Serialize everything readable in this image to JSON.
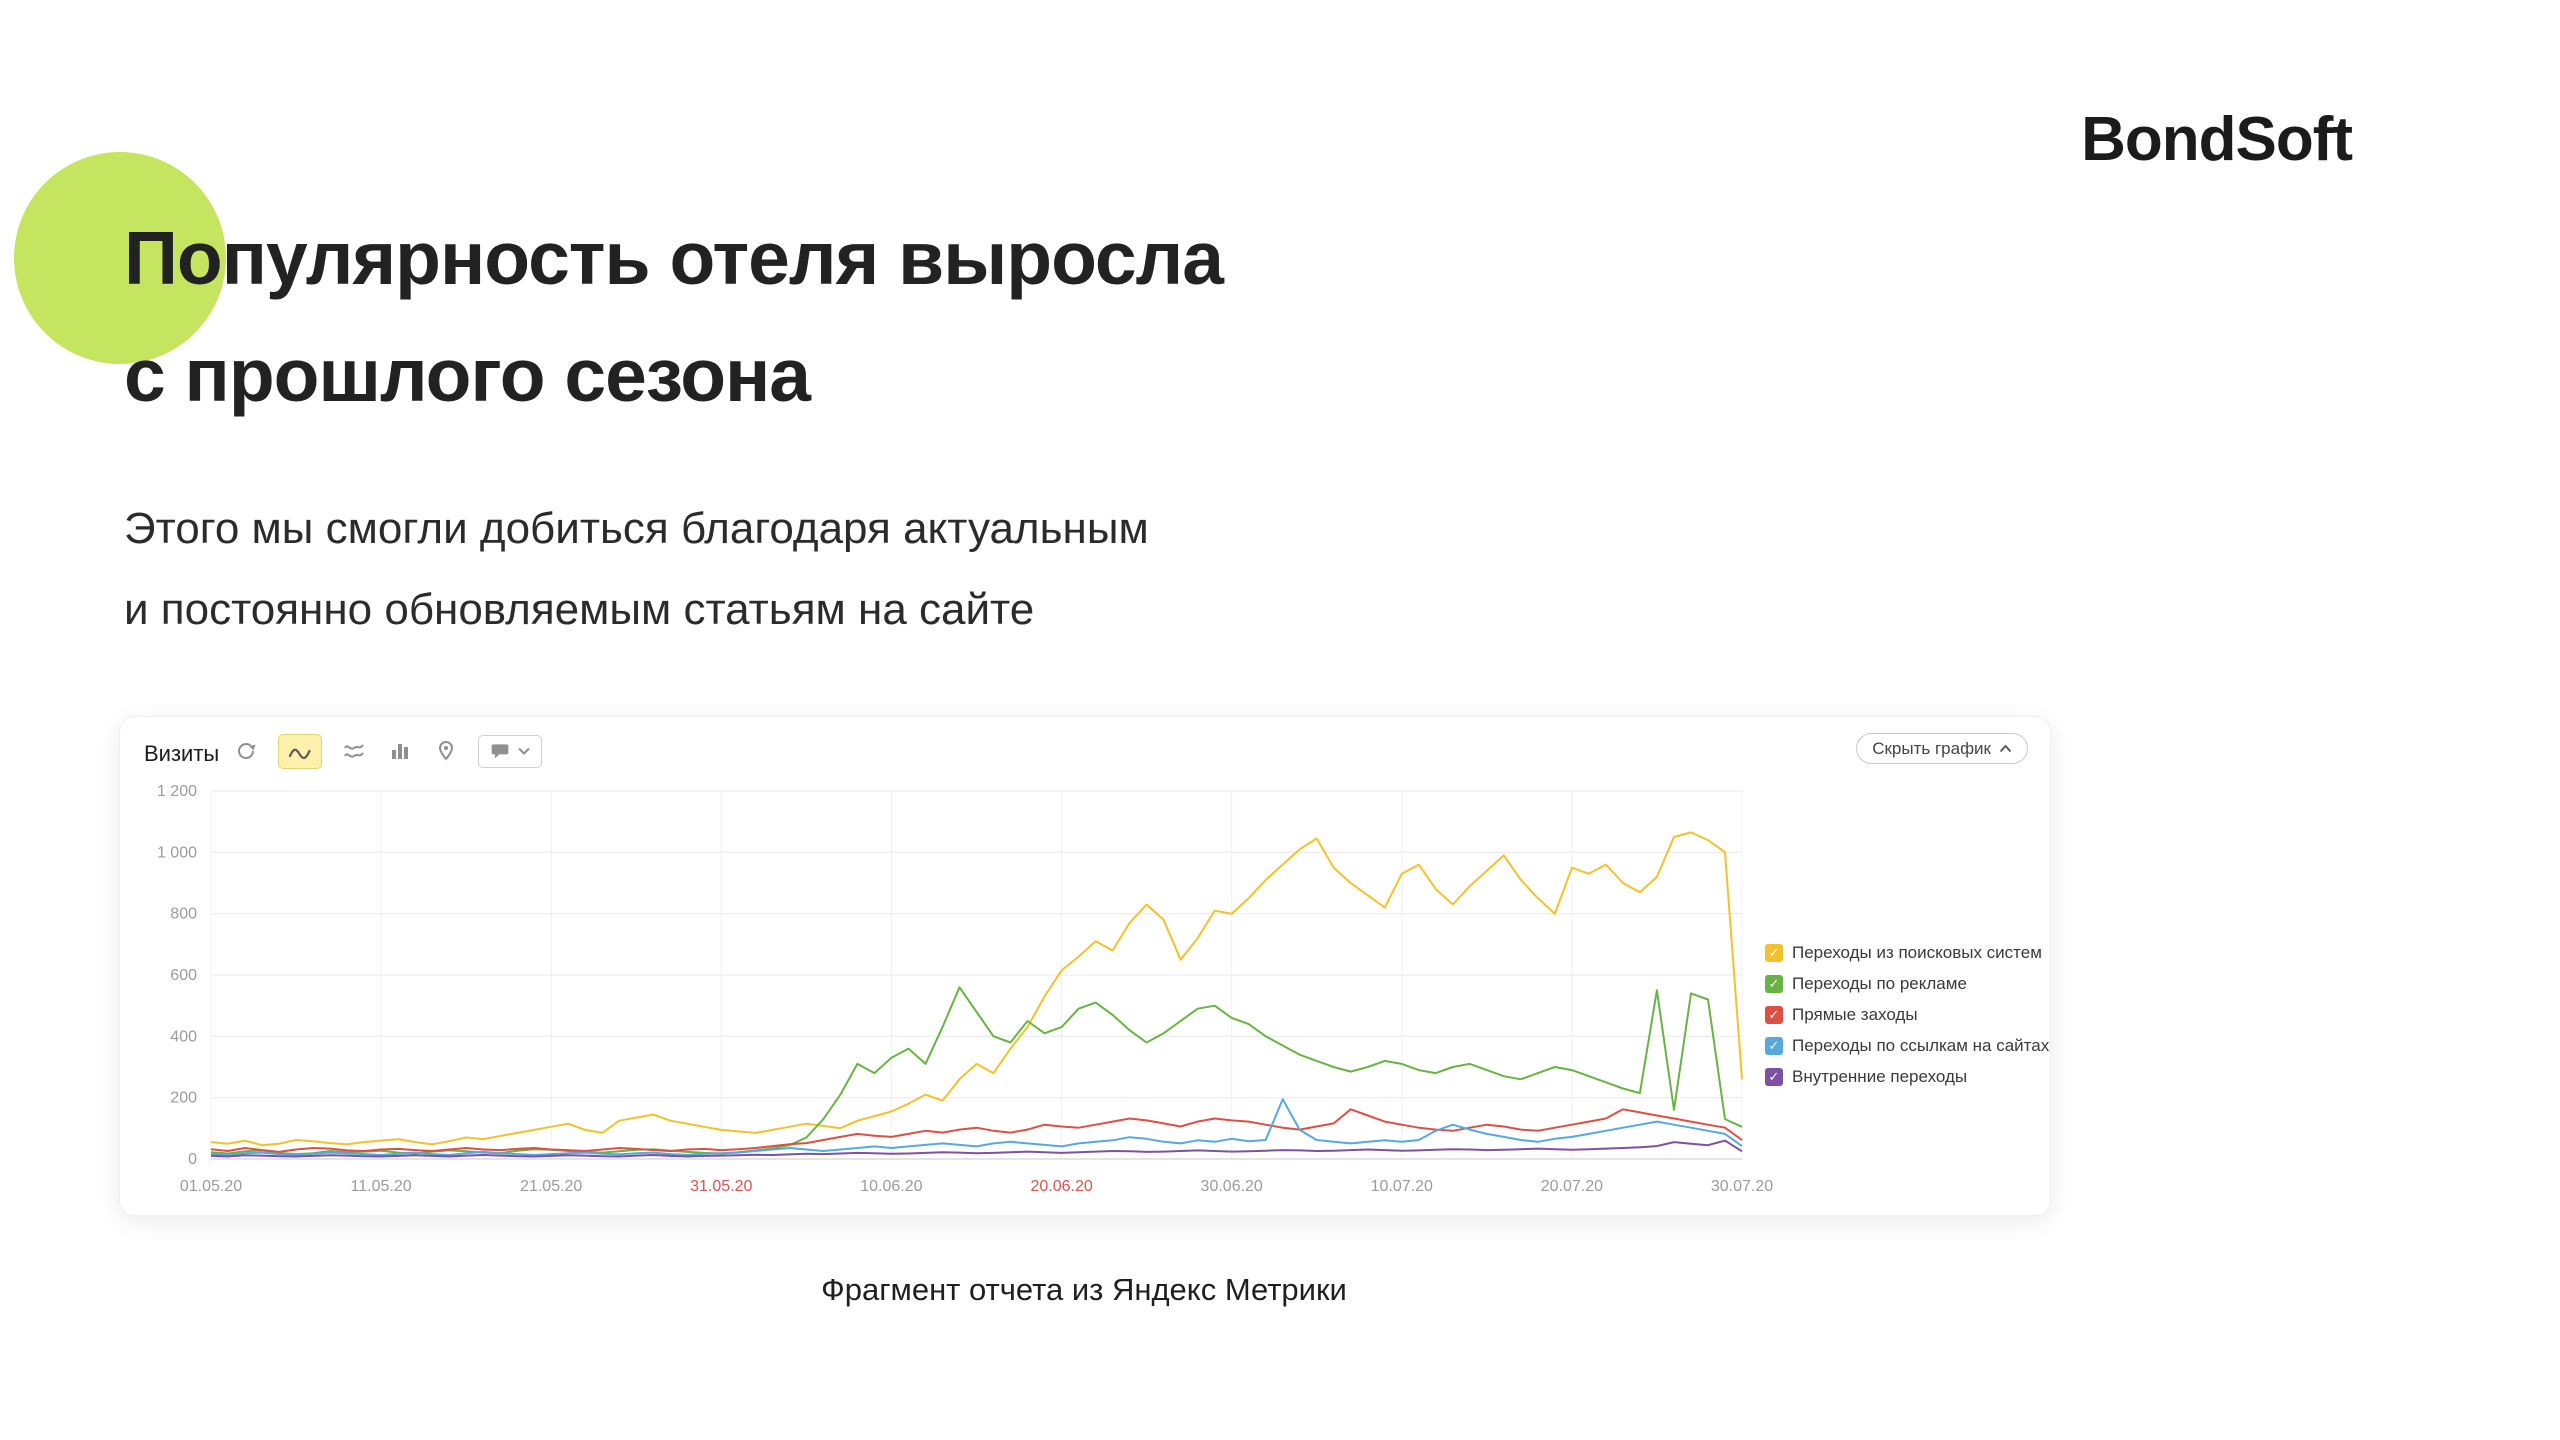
{
  "logo": {
    "text": "BondSoft"
  },
  "heading": {
    "line1": "Популярность отеля выросла",
    "line2": "с прошлого сезона"
  },
  "subtitle": {
    "line1": "Этого мы смогли добиться благодаря актуальным",
    "line2": "и постоянно обновляемым статьям на сайте"
  },
  "caption": "Фрагмент отчета из Яндекс Метрики",
  "metrika": {
    "panel_title": "Визиты",
    "hide_button": "Скрыть график",
    "toolbar_icons": [
      "refresh-icon",
      "line-chart-icon",
      "stacked-chart-icon",
      "bar-chart-icon",
      "map-pin-icon",
      "comment-dropdown"
    ]
  },
  "chart_data": {
    "type": "line",
    "title": "Визиты",
    "x_tick_labels": [
      "01.05.20",
      "11.05.20",
      "21.05.20",
      "31.05.20",
      "10.06.20",
      "20.06.20",
      "30.06.20",
      "10.07.20",
      "20.07.20",
      "30.07.20"
    ],
    "x_tick_indices": [
      0,
      10,
      20,
      30,
      40,
      50,
      60,
      70,
      80,
      90
    ],
    "weekend_ticks": [
      "31.05.20",
      "20.06.20"
    ],
    "y_min": 0,
    "y_max": 1200,
    "y_step": 200,
    "grid": true,
    "legend_position": "right",
    "series": [
      {
        "name": "Переходы из поисковых систем",
        "color": "#f2c12e",
        "values": [
          55,
          50,
          60,
          45,
          50,
          62,
          58,
          52,
          48,
          55,
          60,
          65,
          55,
          48,
          58,
          70,
          65,
          75,
          85,
          95,
          105,
          115,
          95,
          85,
          125,
          135,
          145,
          125,
          115,
          105,
          95,
          90,
          85,
          95,
          105,
          115,
          108,
          100,
          125,
          140,
          155,
          180,
          210,
          190,
          260,
          310,
          280,
          360,
          430,
          530,
          615,
          660,
          710,
          680,
          770,
          830,
          780,
          650,
          720,
          810,
          800,
          850,
          910,
          960,
          1010,
          1045,
          950,
          900,
          860,
          820,
          930,
          960,
          880,
          830,
          890,
          940,
          990,
          910,
          850,
          800,
          950,
          930,
          960,
          900,
          870,
          920,
          1050,
          1065,
          1040,
          1000,
          260
        ]
      },
      {
        "name": "Переходы по рекламе",
        "color": "#69b344",
        "values": [
          22,
          18,
          25,
          28,
          20,
          16,
          19,
          26,
          22,
          24,
          27,
          21,
          18,
          24,
          28,
          25,
          21,
          19,
          27,
          32,
          30,
          26,
          23,
          21,
          25,
          30,
          32,
          27,
          23,
          20,
          18,
          22,
          28,
          35,
          45,
          70,
          130,
          210,
          310,
          280,
          330,
          360,
          310,
          430,
          560,
          480,
          400,
          380,
          450,
          410,
          430,
          490,
          510,
          470,
          420,
          380,
          410,
          450,
          490,
          500,
          460,
          440,
          400,
          370,
          340,
          320,
          300,
          285,
          300,
          320,
          310,
          290,
          280,
          300,
          310,
          290,
          270,
          260,
          280,
          300,
          290,
          270,
          250,
          230,
          215,
          550,
          160,
          540,
          520,
          130,
          105
        ]
      },
      {
        "name": "Прямые заходы",
        "color": "#dc5044",
        "values": [
          32,
          26,
          36,
          29,
          23,
          31,
          36,
          34,
          28,
          26,
          31,
          33,
          29,
          26,
          31,
          36,
          31,
          29,
          33,
          36,
          31,
          29,
          26,
          31,
          36,
          33,
          29,
          26,
          31,
          33,
          29,
          32,
          36,
          42,
          48,
          52,
          62,
          72,
          82,
          76,
          72,
          82,
          92,
          86,
          96,
          102,
          92,
          86,
          96,
          112,
          106,
          102,
          112,
          122,
          132,
          126,
          116,
          106,
          122,
          132,
          126,
          122,
          112,
          102,
          96,
          106,
          116,
          162,
          142,
          122,
          112,
          102,
          96,
          92,
          102,
          112,
          106,
          96,
          92,
          102,
          112,
          122,
          132,
          162,
          152,
          142,
          132,
          122,
          112,
          102,
          62
        ]
      },
      {
        "name": "Переходы по ссылкам на сайтах",
        "color": "#57a7e0",
        "values": [
          16,
          13,
          19,
          21,
          16,
          13,
          17,
          21,
          19,
          16,
          13,
          17,
          21,
          16,
          13,
          19,
          23,
          19,
          16,
          13,
          16,
          19,
          21,
          17,
          15,
          19,
          21,
          16,
          13,
          17,
          19,
          21,
          26,
          31,
          36,
          31,
          26,
          31,
          36,
          41,
          36,
          41,
          46,
          51,
          46,
          41,
          51,
          56,
          51,
          46,
          41,
          51,
          56,
          61,
          71,
          66,
          56,
          51,
          61,
          56,
          66,
          58,
          62,
          195,
          95,
          62,
          56,
          51,
          56,
          61,
          56,
          62,
          92,
          112,
          96,
          82,
          72,
          62,
          56,
          66,
          72,
          82,
          92,
          102,
          112,
          122,
          112,
          102,
          92,
          82,
          42
        ]
      },
      {
        "name": "Внутренние переходы",
        "color": "#7e52a0",
        "values": [
          10,
          8,
          12,
          11,
          9,
          8,
          10,
          12,
          11,
          9,
          8,
          10,
          12,
          10,
          8,
          11,
          13,
          11,
          9,
          8,
          10,
          12,
          11,
          9,
          8,
          11,
          13,
          10,
          8,
          10,
          11,
          12,
          14,
          13,
          15,
          17,
          16,
          18,
          20,
          19,
          17,
          18,
          20,
          22,
          21,
          19,
          20,
          22,
          24,
          22,
          20,
          22,
          24,
          26,
          25,
          23,
          24,
          26,
          28,
          26,
          24,
          25,
          27,
          29,
          28,
          26,
          27,
          29,
          31,
          29,
          27,
          28,
          30,
          32,
          31,
          29,
          30,
          32,
          34,
          32,
          30,
          32,
          34,
          36,
          38,
          42,
          55,
          50,
          45,
          60,
          25
        ]
      }
    ]
  }
}
